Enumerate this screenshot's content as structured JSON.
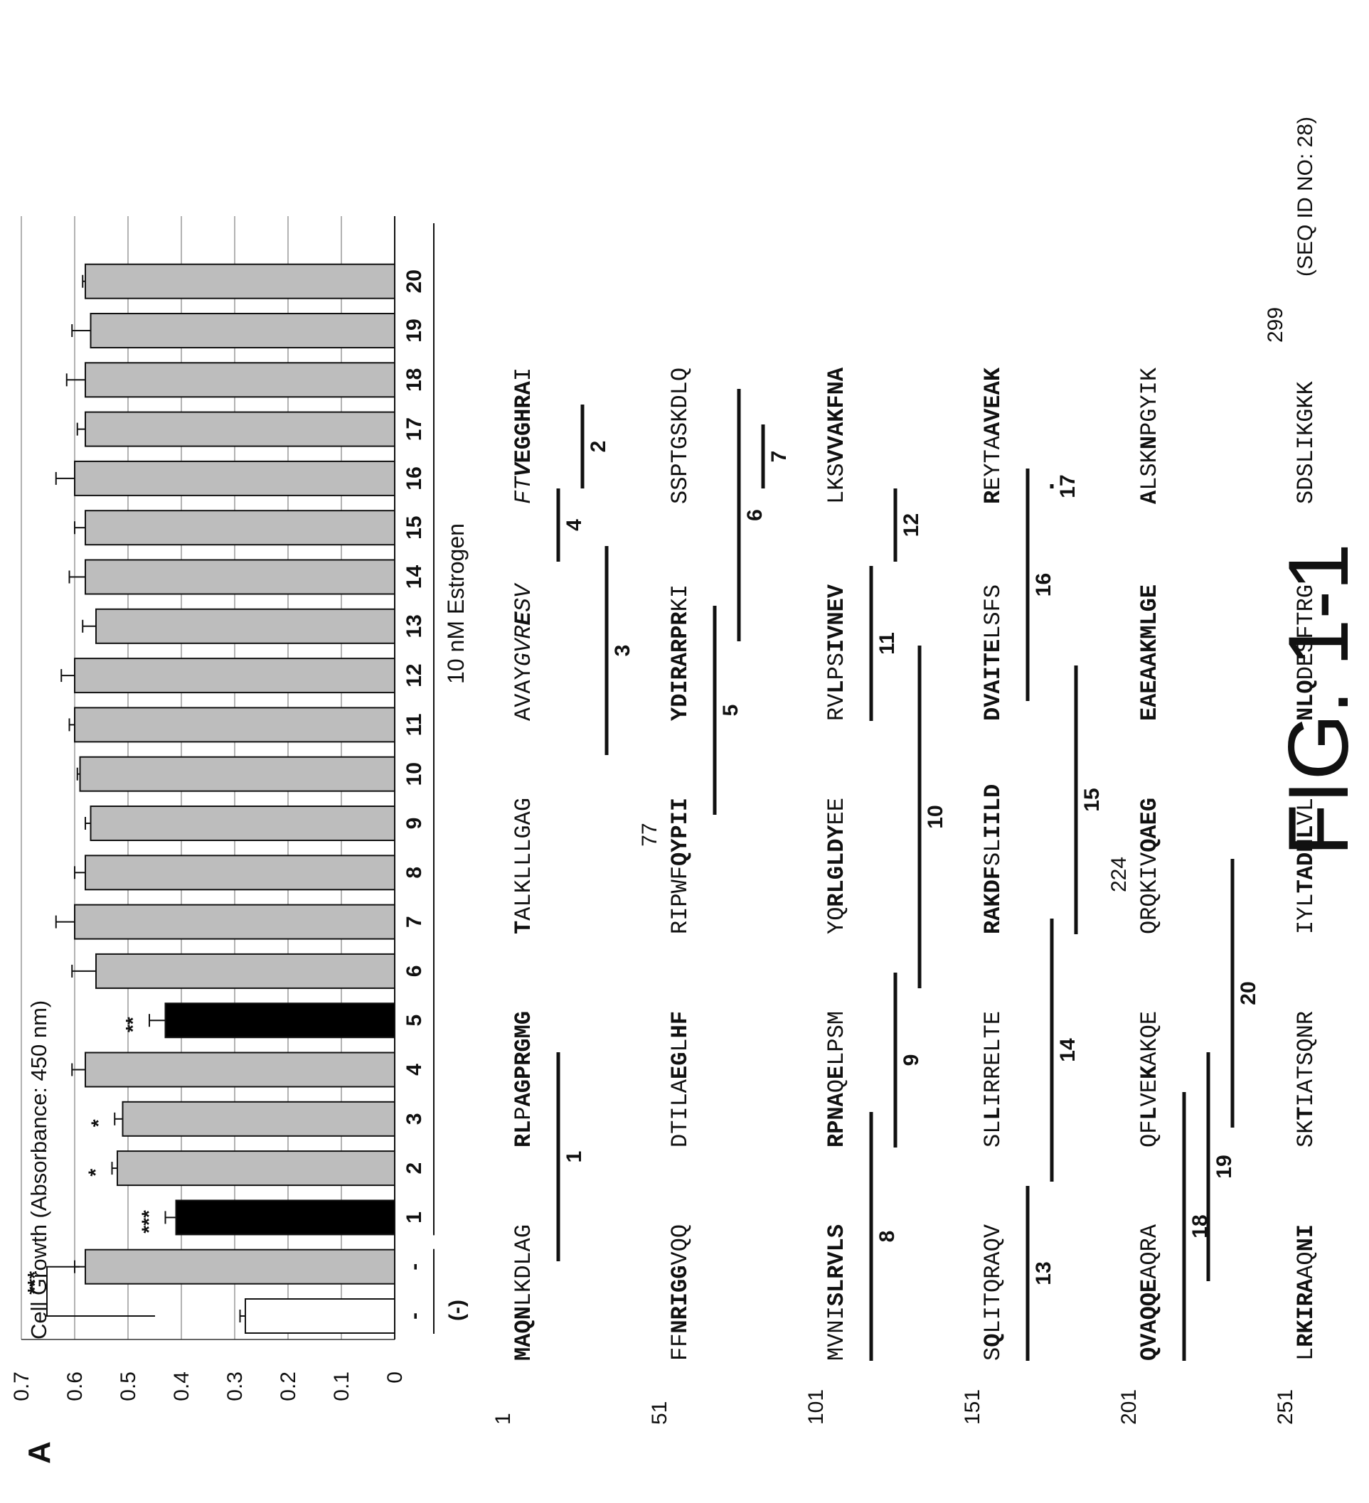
{
  "panel_label": "A",
  "figure_label": "FIG. 1-1",
  "chart_data": {
    "type": "bar",
    "ylabel": "Cell Growth (Absorbance: 450 nm)",
    "ylim": [
      0,
      0.7
    ],
    "yticks": [
      "0",
      "0.1",
      "0.2",
      "0.3",
      "0.4",
      "0.5",
      "0.6",
      "0.7"
    ],
    "grid": true,
    "categories": [
      "-",
      "-",
      "1",
      "2",
      "3",
      "4",
      "5",
      "6",
      "7",
      "8",
      "9",
      "10",
      "11",
      "12",
      "13",
      "14",
      "15",
      "16",
      "17",
      "18",
      "19",
      "20"
    ],
    "values": [
      0.28,
      0.58,
      0.41,
      0.52,
      0.51,
      0.58,
      0.43,
      0.56,
      0.6,
      0.58,
      0.57,
      0.59,
      0.6,
      0.6,
      0.56,
      0.58,
      0.58,
      0.6,
      0.58,
      0.58,
      0.57,
      0.58
    ],
    "errors": [
      0.01,
      0.02,
      0.02,
      0.01,
      0.015,
      0.025,
      0.03,
      0.045,
      0.035,
      0.02,
      0.01,
      0.005,
      0.01,
      0.025,
      0.025,
      0.03,
      0.02,
      0.035,
      0.015,
      0.035,
      0.035,
      0.005
    ],
    "fill": [
      "white",
      "gray",
      "black",
      "gray",
      "gray",
      "gray",
      "black",
      "gray",
      "gray",
      "gray",
      "gray",
      "gray",
      "gray",
      "gray",
      "gray",
      "gray",
      "gray",
      "gray",
      "gray",
      "gray",
      "gray",
      "gray"
    ],
    "significance": [
      "",
      "",
      "***",
      "*",
      "*",
      "",
      "**",
      "",
      "",
      "",
      "",
      "",
      "",
      "",
      "",
      "",
      "",
      "",
      "",
      "",
      "",
      ""
    ],
    "bracket_label": "***",
    "group_labels": {
      "control": "(-)",
      "estrogen": "10 nM Estrogen"
    },
    "colors": {
      "gray": "#bdbdbd",
      "black": "#000000",
      "white": "#ffffff"
    }
  },
  "sequence": {
    "seq_id": "(SEQ ID NO: 28)",
    "rows": [
      {
        "start": "1",
        "blocks": [
          [
            {
              "t": "MAQN",
              "b": true
            },
            {
              "t": "LKDLAG"
            }
          ],
          [
            {
              "t": "RL",
              "b": true
            },
            {
              "t": "P"
            },
            {
              "t": "AGPRGMG",
              "b": true
            }
          ],
          [
            {
              "t": "T",
              "b": true
            },
            {
              "t": "ALKLLLGAG"
            }
          ],
          [
            {
              "t": "AVAY"
            },
            {
              "t": "GVR",
              "i": true
            },
            {
              "t": "E",
              "i": true,
              "b": true
            },
            {
              "t": "S",
              "i": true
            },
            {
              "t": "V",
              "i": true
            }
          ],
          [
            {
              "t": "FT",
              "i": true
            },
            {
              "t": "V",
              "i": true,
              "b": true
            },
            {
              "t": "EGGHRA",
              "b": true
            },
            {
              "t": "I"
            }
          ]
        ]
      },
      {
        "start": "51",
        "marker": "77",
        "blocks": [
          [
            {
              "t": "FF"
            },
            {
              "t": "NRIGG",
              "b": true
            },
            {
              "t": "VQQ"
            }
          ],
          [
            {
              "t": "DTILA"
            },
            {
              "t": "EG",
              "b": true
            },
            {
              "t": "L"
            },
            {
              "t": "HF",
              "b": true
            }
          ],
          [
            {
              "t": "RIPWF"
            },
            {
              "t": "QYPII",
              "b": true
            }
          ],
          [
            {
              "t": "YDIRARPR",
              "b": true
            },
            {
              "t": "KI"
            }
          ],
          [
            {
              "t": "SSPTGSKDLQ"
            }
          ]
        ]
      },
      {
        "start": "101",
        "blocks": [
          [
            {
              "t": "MVNI"
            },
            {
              "t": "SLRVLS",
              "b": true
            }
          ],
          [
            {
              "t": "RPNA",
              "b": true
            },
            {
              "t": "Q"
            },
            {
              "t": "E",
              "b": true
            },
            {
              "t": "LPSM"
            }
          ],
          [
            {
              "t": "YQ"
            },
            {
              "t": "RLGLDY",
              "b": true
            },
            {
              "t": "EE"
            }
          ],
          [
            {
              "t": "RV"
            },
            {
              "t": "L",
              "b": true
            },
            {
              "t": "PS"
            },
            {
              "t": "IVNEV",
              "b": true
            }
          ],
          [
            {
              "t": "LKS"
            },
            {
              "t": "VVAK",
              "b": true
            },
            {
              "t": "FNA",
              "b": true
            }
          ]
        ]
      },
      {
        "start": "151",
        "blocks": [
          [
            {
              "t": "S"
            },
            {
              "t": "Q",
              "b": true
            },
            {
              "t": "LITQRAQV"
            }
          ],
          [
            {
              "t": "SL"
            },
            {
              "t": "L",
              "b": true
            },
            {
              "t": "IRRELTE"
            }
          ],
          [
            {
              "t": "RAKD",
              "b": true
            },
            {
              "t": "F",
              "b": true
            },
            {
              "t": "SL"
            },
            {
              "t": "IILD",
              "b": true
            }
          ],
          [
            {
              "t": "DVAI",
              "b": true
            },
            {
              "t": "T",
              "b": true
            },
            {
              "t": "E",
              "b": true
            },
            {
              "t": "LSFS"
            }
          ],
          [
            {
              "t": "R",
              "b": true
            },
            {
              "t": "EYTA"
            },
            {
              "t": "AVEAK",
              "b": true
            }
          ]
        ]
      },
      {
        "start": "201",
        "marker": "224",
        "blocks": [
          [
            {
              "t": "QVAQQ",
              "b": true
            },
            {
              "t": "E",
              "b": true
            },
            {
              "t": "AQRA"
            }
          ],
          [
            {
              "t": "QF"
            },
            {
              "t": "L",
              "b": true
            },
            {
              "t": "VE"
            },
            {
              "t": "K",
              "b": true
            },
            {
              "t": "AKQE"
            }
          ],
          [
            {
              "t": "QRQKIV"
            },
            {
              "t": "QAEG",
              "b": true
            }
          ],
          [
            {
              "t": "EAEAAKMLGE",
              "b": true
            }
          ],
          [
            {
              "t": "A",
              "b": true
            },
            {
              "t": "LSK"
            },
            {
              "t": "N",
              "b": true
            },
            {
              "t": "PGYIK"
            }
          ]
        ]
      },
      {
        "start": "251",
        "marker": "299",
        "blocks": [
          [
            {
              "t": "L"
            },
            {
              "t": "RKIRA",
              "b": true
            },
            {
              "t": "AQ"
            },
            {
              "t": "NI",
              "b": true
            }
          ],
          [
            {
              "t": "SK"
            },
            {
              "t": "T",
              "b": true
            },
            {
              "t": "IATSQNR"
            }
          ],
          [
            {
              "t": "IYL"
            },
            {
              "t": "TADNL",
              "b": true
            },
            {
              "t": "VL"
            }
          ],
          [
            {
              "t": "NL",
              "b": true
            },
            {
              "t": "Q",
              "b": true
            },
            {
              "t": "DESFTRG"
            }
          ],
          [
            {
              "t": "SDSLIKGKK"
            }
          ]
        ]
      }
    ],
    "peptides": [
      {
        "label": "1",
        "row": 0,
        "from": 5,
        "to": 15
      },
      {
        "label": "2",
        "row": 0,
        "from": 45,
        "to": 50
      },
      {
        "label": "3",
        "row": 0,
        "from": 29,
        "to": 39
      },
      {
        "label": "4",
        "row": 0,
        "from": 38,
        "to": 50
      },
      {
        "label": "5",
        "row": 1,
        "from": 26,
        "to": 36
      },
      {
        "label": "6",
        "row": 1,
        "from": 34,
        "to": 46
      },
      {
        "label": "7",
        "row": 1,
        "from": 44,
        "to": 50
      },
      {
        "label": "8",
        "row": 2,
        "from": 0,
        "to": 12
      },
      {
        "label": "9",
        "row": 2,
        "from": 10,
        "to": 19
      },
      {
        "label": "10",
        "row": 2,
        "from": 18,
        "to": 34
      },
      {
        "label": "11",
        "row": 2,
        "from": 30,
        "to": 38
      },
      {
        "label": "12",
        "row": 2,
        "from": 38,
        "to": 50
      },
      {
        "label": "13",
        "row": 3,
        "from": 0,
        "to": 9
      },
      {
        "label": "14",
        "row": 3,
        "from": 9,
        "to": 21
      },
      {
        "label": "15",
        "row": 3,
        "from": 20,
        "to": 33
      },
      {
        "label": "16",
        "row": 3,
        "from": 31,
        "to": 42
      },
      {
        "label": "17",
        "row": 3,
        "from": 41,
        "to": 50
      },
      {
        "label": "18",
        "row": 4,
        "from": 0,
        "to": 13
      },
      {
        "label": "19",
        "row": 4,
        "from": 4,
        "to": 15
      },
      {
        "label": "20",
        "row": 4,
        "from": 11,
        "to": 24
      }
    ]
  }
}
